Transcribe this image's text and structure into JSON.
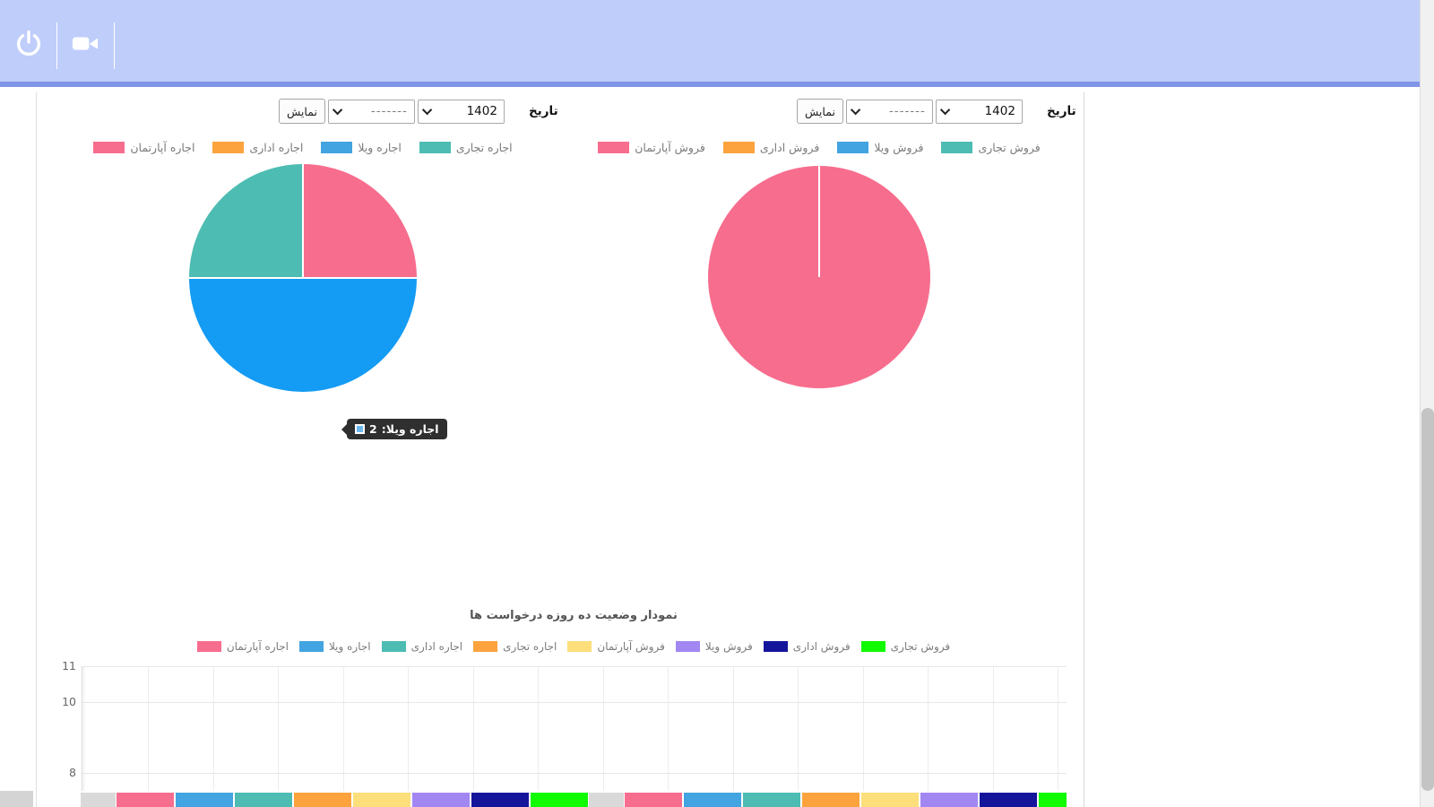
{
  "header": {
    "background": "#bfcdfb",
    "border_color": "#8094e8",
    "icons": [
      "power-icon",
      "video-camera-icon"
    ]
  },
  "filters": {
    "right": {
      "date_label": "تاریخ",
      "year": "1402",
      "month_placeholder": "-------",
      "show_button": "نمایش"
    },
    "left": {
      "date_label": "تاریخ",
      "year": "1402",
      "month_placeholder": "-------",
      "show_button": "نمایش"
    }
  },
  "chart_data": [
    {
      "type": "pie",
      "position": "right-of-page",
      "legend": [
        "اجاره آپارتمان",
        "اجاره اداری",
        "اجاره ویلا",
        "اجاره تجاری"
      ],
      "legend_colors": [
        "#f76d8e",
        "#fca33e",
        "#42a4e0",
        "#4dbcb2"
      ],
      "slices": [
        {
          "label": "اجاره آپارتمان",
          "percent": 25,
          "color": "#f76d8e"
        },
        {
          "label": "اجاره ویلا",
          "percent": 50,
          "value": 2,
          "color": "#149bf3"
        },
        {
          "label": "اجاره تجاری",
          "percent": 25,
          "color": "#4dbcb2"
        }
      ],
      "tooltip": {
        "label": "اجاره ویلا:",
        "value": "2",
        "swatch_color": "#6cb8ef"
      }
    },
    {
      "type": "pie",
      "position": "left-of-page",
      "legend": [
        "فروش آپارتمان",
        "فروش اداری",
        "فروش ویلا",
        "فروش تجاری"
      ],
      "legend_colors": [
        "#f76d8e",
        "#fca33e",
        "#42a4e0",
        "#4dbcb2"
      ],
      "slices": [
        {
          "label": "فروش آپارتمان",
          "percent": 100,
          "color": "#f76d8e"
        }
      ]
    },
    {
      "type": "bar",
      "title": "نمودار وضعیت ده روزه درخواست ها",
      "legend": [
        "اجاره آپارتمان",
        "اجاره ویلا",
        "اجاره اداری",
        "اجاره تجاری",
        "فروش آپارتمان",
        "فروش ویلا",
        "فروش اداری",
        "فروش تجاری"
      ],
      "legend_colors": [
        "#f76d8e",
        "#42a4e0",
        "#4dbcb2",
        "#fca33e",
        "#fcde7b",
        "#a287f2",
        "#15159c",
        "#10fa00"
      ],
      "y_ticks": [
        11,
        10,
        8
      ],
      "ylim": [
        8,
        11
      ],
      "grid": true,
      "cutoff_colors": [
        "#d9d9d9",
        "#f76d8e",
        "#42a4e0",
        "#4dbcb2",
        "#fca33e",
        "#fcde7b",
        "#a287f2",
        "#15159c",
        "#10fa00"
      ]
    }
  ]
}
